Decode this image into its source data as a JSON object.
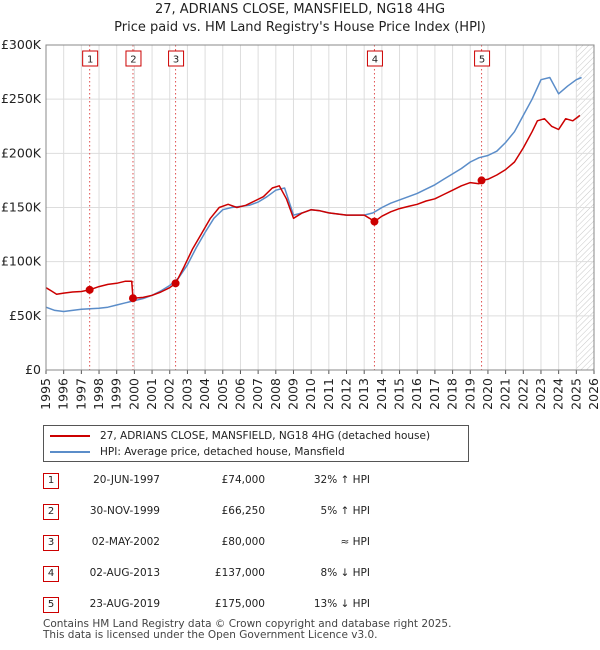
{
  "chart_data": {
    "type": "line",
    "title": "27, ADRIANS CLOSE, MANSFIELD, NG18 4HG",
    "subtitle": "Price paid vs. HM Land Registry's House Price Index (HPI)",
    "xlim": [
      1995,
      2026
    ],
    "ylim": [
      0,
      300000
    ],
    "x_ticks": [
      "1995",
      "1996",
      "1997",
      "1998",
      "1999",
      "2000",
      "2001",
      "2002",
      "2003",
      "2004",
      "2005",
      "2006",
      "2007",
      "2008",
      "2009",
      "2010",
      "2011",
      "2012",
      "2013",
      "2014",
      "2015",
      "2016",
      "2017",
      "2018",
      "2019",
      "2020",
      "2021",
      "2022",
      "2023",
      "2024",
      "2025",
      "2026"
    ],
    "y_ticks": [
      {
        "value": 0,
        "label": "£0"
      },
      {
        "value": 50000,
        "label": "£50K"
      },
      {
        "value": 100000,
        "label": "£100K"
      },
      {
        "value": 150000,
        "label": "£150K"
      },
      {
        "value": 200000,
        "label": "£200K"
      },
      {
        "value": 250000,
        "label": "£250K"
      },
      {
        "value": 300000,
        "label": "£300K"
      }
    ],
    "series": [
      {
        "name": "27, ADRIANS CLOSE, MANSFIELD, NG18 4HG (detached house)",
        "color": "#cc0000",
        "x": [
          1995.0,
          1995.3,
          1995.6,
          1996.0,
          1996.5,
          1997.0,
          1997.47,
          1998.0,
          1998.5,
          1999.0,
          1999.5,
          1999.85,
          1999.92,
          2000.5,
          2001.0,
          2001.5,
          2002.0,
          2002.33,
          2002.8,
          2003.3,
          2003.8,
          2004.3,
          2004.8,
          2005.3,
          2005.8,
          2006.3,
          2006.8,
          2007.3,
          2007.8,
          2008.2,
          2008.6,
          2009.0,
          2009.5,
          2010.0,
          2010.5,
          2011.0,
          2011.5,
          2012.0,
          2012.5,
          2013.0,
          2013.3,
          2013.58,
          2014.0,
          2014.5,
          2015.0,
          2015.5,
          2016.0,
          2016.5,
          2017.0,
          2017.5,
          2018.0,
          2018.5,
          2019.0,
          2019.5,
          2019.64,
          2020.0,
          2020.5,
          2021.0,
          2021.5,
          2022.0,
          2022.5,
          2022.8,
          2023.2,
          2023.6,
          2024.0,
          2024.4,
          2024.8,
          2025.2
        ],
        "values": [
          76000,
          73000,
          70000,
          71000,
          72000,
          72500,
          74000,
          77000,
          79000,
          80000,
          82000,
          82000,
          66250,
          67000,
          69000,
          72000,
          76000,
          80000,
          95000,
          112000,
          126000,
          140000,
          150000,
          153000,
          150000,
          152000,
          156000,
          160000,
          168000,
          170000,
          158000,
          140000,
          145000,
          148000,
          147000,
          145000,
          144000,
          143000,
          143000,
          143000,
          140000,
          137000,
          142000,
          146000,
          149000,
          151000,
          153000,
          156000,
          158000,
          162000,
          166000,
          170000,
          173000,
          172000,
          175000,
          176000,
          180000,
          185000,
          192000,
          205000,
          220000,
          230000,
          232000,
          225000,
          222000,
          232000,
          230000,
          235000
        ]
      },
      {
        "name": "HPI: Average price, detached house, Mansfield",
        "color": "#5b8dc9",
        "x": [
          1995.0,
          1995.5,
          1996.0,
          1996.5,
          1997.0,
          1997.5,
          1998.0,
          1998.5,
          1999.0,
          1999.5,
          2000.0,
          2000.5,
          2001.0,
          2001.5,
          2002.0,
          2002.5,
          2003.0,
          2003.5,
          2004.0,
          2004.5,
          2005.0,
          2005.5,
          2006.0,
          2006.5,
          2007.0,
          2007.5,
          2008.0,
          2008.5,
          2009.0,
          2009.5,
          2010.0,
          2010.5,
          2011.0,
          2011.5,
          2012.0,
          2012.5,
          2013.0,
          2013.5,
          2014.0,
          2014.5,
          2015.0,
          2015.5,
          2016.0,
          2016.5,
          2017.0,
          2017.5,
          2018.0,
          2018.5,
          2019.0,
          2019.5,
          2020.0,
          2020.5,
          2021.0,
          2021.5,
          2022.0,
          2022.5,
          2023.0,
          2023.5,
          2024.0,
          2024.5,
          2025.0,
          2025.3
        ],
        "values": [
          58000,
          55000,
          54000,
          55000,
          56000,
          56500,
          57000,
          58000,
          60000,
          62000,
          64000,
          66000,
          69000,
          73000,
          78000,
          85000,
          97000,
          113000,
          127000,
          140000,
          148000,
          150000,
          151000,
          152000,
          155000,
          160000,
          166000,
          168000,
          143000,
          145000,
          148000,
          147000,
          145000,
          144000,
          143000,
          143000,
          143000,
          145000,
          150000,
          154000,
          157000,
          160000,
          163000,
          167000,
          171000,
          176000,
          181000,
          186000,
          192000,
          196000,
          198000,
          202000,
          210000,
          220000,
          235000,
          250000,
          268000,
          270000,
          255000,
          262000,
          268000,
          270000
        ]
      }
    ],
    "sales": [
      {
        "num": "1",
        "x": 1997.47,
        "value": 74000
      },
      {
        "num": "2",
        "x": 1999.92,
        "value": 66250
      },
      {
        "num": "3",
        "x": 2002.33,
        "value": 80000
      },
      {
        "num": "4",
        "x": 2013.58,
        "value": 137000
      },
      {
        "num": "5",
        "x": 2019.64,
        "value": 175000
      }
    ],
    "projection_start": 2025.0
  },
  "legend": {
    "red_label": "27, ADRIANS CLOSE, MANSFIELD, NG18 4HG (detached house)",
    "blue_label": "HPI: Average price, detached house, Mansfield"
  },
  "transactions": [
    {
      "num": "1",
      "date": "20-JUN-1997",
      "price": "£74,000",
      "relation": "32% ↑ HPI"
    },
    {
      "num": "2",
      "date": "30-NOV-1999",
      "price": "£66,250",
      "relation": "5% ↑ HPI"
    },
    {
      "num": "3",
      "date": "02-MAY-2002",
      "price": "£80,000",
      "relation": "≈ HPI"
    },
    {
      "num": "4",
      "date": "02-AUG-2013",
      "price": "£137,000",
      "relation": "8% ↓ HPI"
    },
    {
      "num": "5",
      "date": "23-AUG-2019",
      "price": "£175,000",
      "relation": "13% ↓ HPI"
    }
  ],
  "footer": {
    "line1": "Contains HM Land Registry data © Crown copyright and database right 2025.",
    "line2": "This data is licensed under the Open Government Licence v3.0."
  }
}
